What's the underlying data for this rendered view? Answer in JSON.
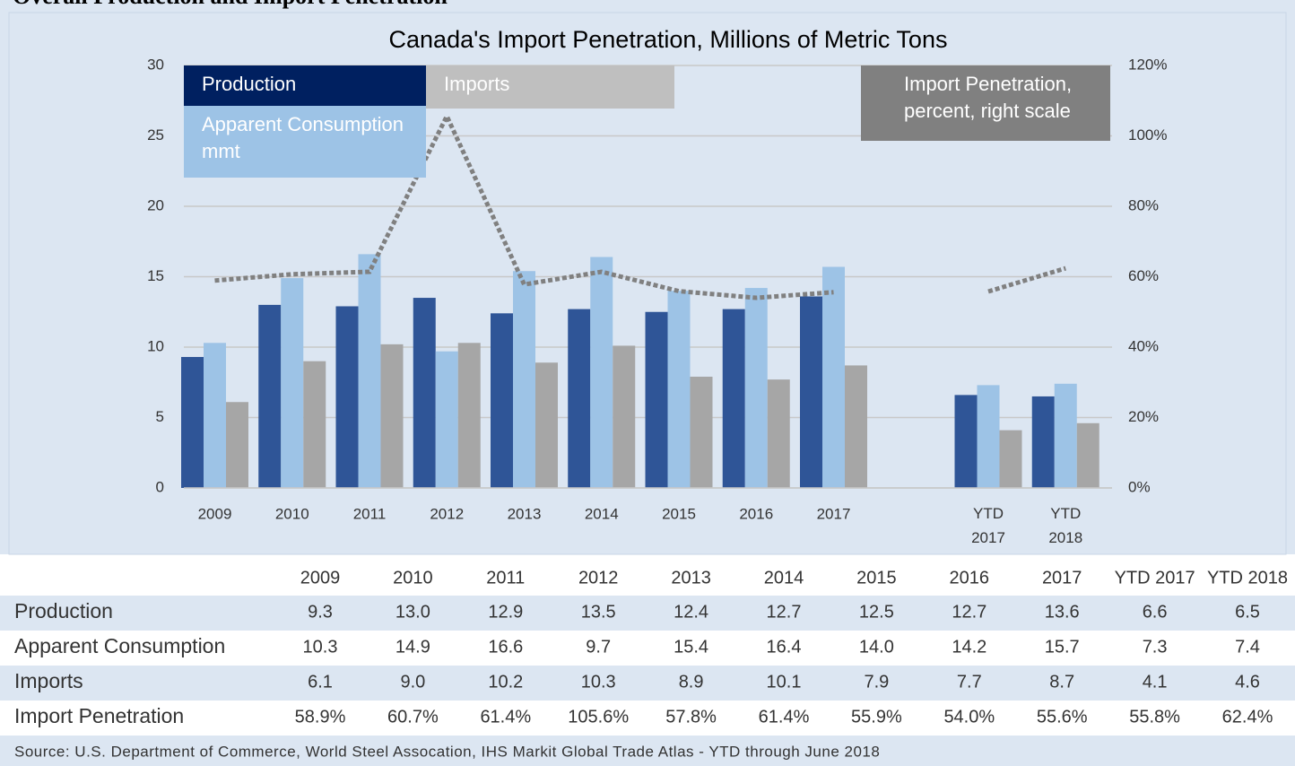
{
  "heading": "Overall Production and Import Penetration",
  "chart_data": {
    "type": "bar",
    "title": "Canada's Import Penetration, Millions of Metric Tons",
    "categories": [
      "2009",
      "2010",
      "2011",
      "2012",
      "2013",
      "2014",
      "2015",
      "2016",
      "2017",
      null,
      "YTD 2017",
      "YTD 2018"
    ],
    "series": [
      {
        "name": "Production",
        "type": "bar",
        "color": "#2f5597",
        "values": [
          9.3,
          13.0,
          12.9,
          13.5,
          12.4,
          12.7,
          12.5,
          12.7,
          13.6,
          null,
          6.6,
          6.5
        ]
      },
      {
        "name": "Apparent Consumption mmt",
        "type": "bar",
        "color": "#9dc3e6",
        "values": [
          10.3,
          14.9,
          16.6,
          9.7,
          15.4,
          16.4,
          14.0,
          14.2,
          15.7,
          null,
          7.3,
          7.4
        ]
      },
      {
        "name": "Imports",
        "type": "bar",
        "color": "#a6a6a6",
        "values": [
          6.1,
          9.0,
          10.2,
          10.3,
          8.9,
          10.1,
          7.9,
          7.7,
          8.7,
          null,
          4.1,
          4.6
        ]
      },
      {
        "name": "Import Penetration, percent, right scale",
        "type": "line",
        "axis": "y2",
        "color": "#808080",
        "values": [
          58.9,
          60.7,
          61.4,
          105.6,
          57.8,
          61.4,
          55.9,
          54.0,
          55.6,
          null,
          55.8,
          62.4
        ]
      }
    ],
    "ylim": [
      0,
      30
    ],
    "yticks": [
      0,
      5,
      10,
      15,
      20,
      25,
      30
    ],
    "y2lim": [
      0,
      120
    ],
    "y2ticks": [
      {
        "value": 0,
        "label": "0%"
      },
      {
        "value": 20,
        "label": "20%"
      },
      {
        "value": 40,
        "label": "40%"
      },
      {
        "value": 60,
        "label": "60%"
      },
      {
        "value": 80,
        "label": "80%"
      },
      {
        "value": 100,
        "label": "100%"
      },
      {
        "value": 120,
        "label": "120%"
      }
    ],
    "grid": true
  },
  "table": {
    "header": [
      "2009",
      "2010",
      "2011",
      "2012",
      "2013",
      "2014",
      "2015",
      "2016",
      "2017",
      "YTD 2017",
      "YTD 2018"
    ],
    "rows": [
      [
        "Production",
        "9.3",
        "13.0",
        "12.9",
        "13.5",
        "12.4",
        "12.7",
        "12.5",
        "12.7",
        "13.6",
        "6.6",
        "6.5"
      ],
      [
        "Apparent Consumption",
        "10.3",
        "14.9",
        "16.6",
        "9.7",
        "15.4",
        "16.4",
        "14.0",
        "14.2",
        "15.7",
        "7.3",
        "7.4"
      ],
      [
        "Imports",
        "6.1",
        "9.0",
        "10.2",
        "10.3",
        "8.9",
        "10.1",
        "7.9",
        "7.7",
        "8.7",
        "4.1",
        "4.6"
      ],
      [
        "Import Penetration",
        "58.9%",
        "60.7%",
        "61.4%",
        "105.6%",
        "57.8%",
        "61.4%",
        "55.9%",
        "54.0%",
        "55.6%",
        "55.8%",
        "62.4%"
      ]
    ],
    "source": "Source: U.S. Department of Commerce, World Steel Assocation, IHS Markit Global Trade Atlas - YTD through June 2018"
  }
}
